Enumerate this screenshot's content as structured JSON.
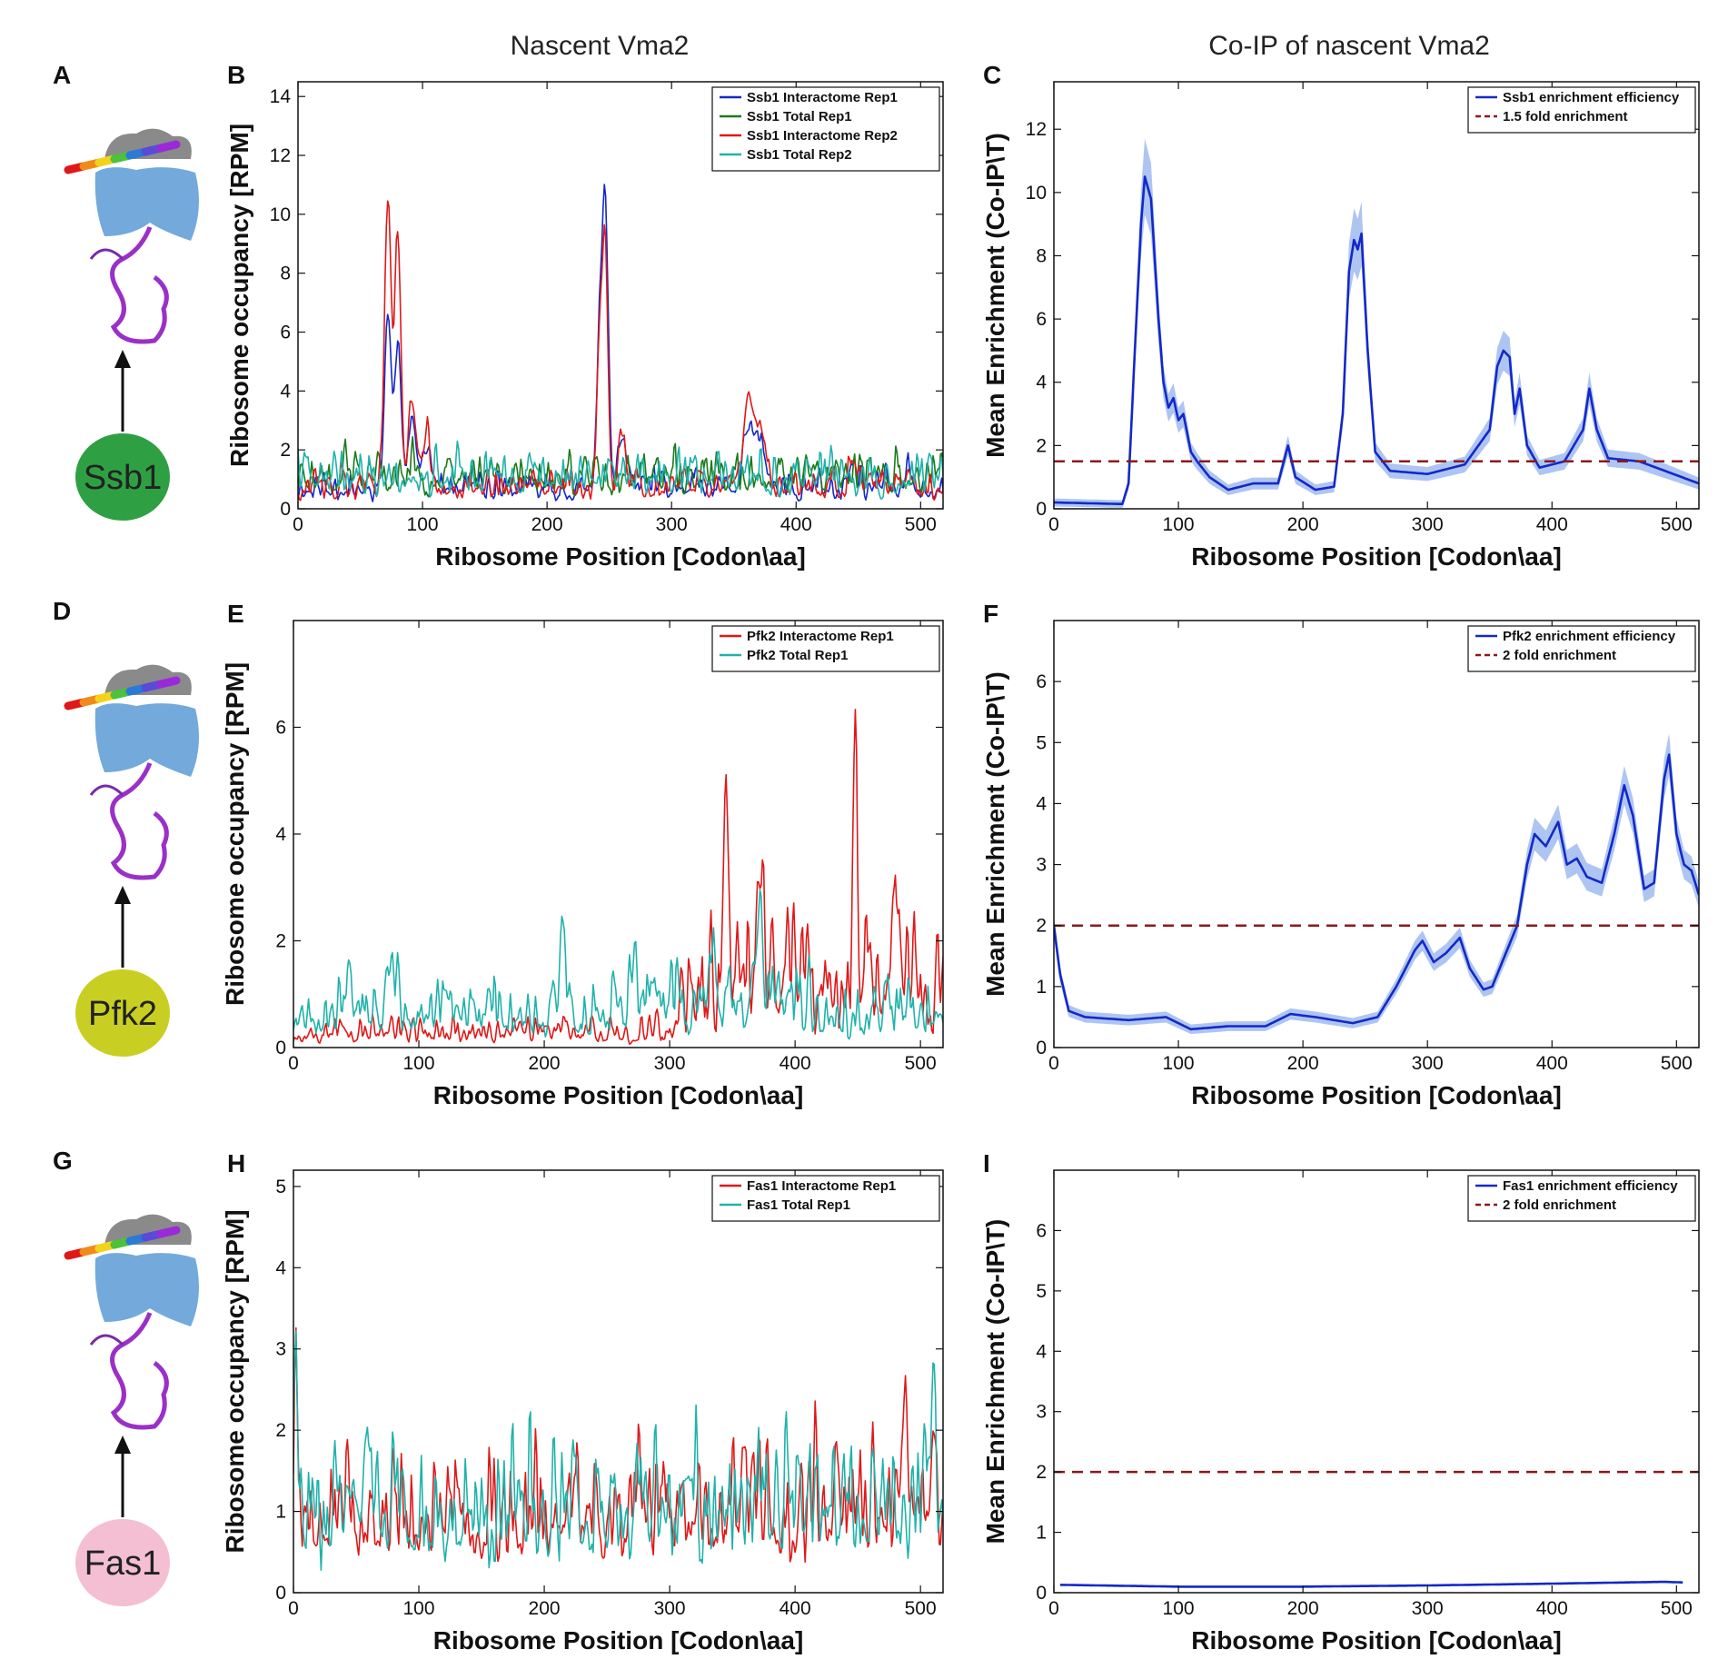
{
  "column_titles": [
    "Nascent Vma2",
    "Co-IP of nascent Vma2"
  ],
  "rows": [
    {
      "letter": "A",
      "protein": "Ssb1",
      "color": "#2ea043"
    },
    {
      "letter": "D",
      "protein": "Pfk2",
      "color": "#c8cf22"
    },
    {
      "letter": "G",
      "protein": "Fas1",
      "color": "#f4bfd2"
    }
  ],
  "colors": {
    "blue": "#1428c8",
    "green": "#1a7a1a",
    "red": "#e01818",
    "teal": "#20b2aa",
    "band": "#9ab6ee",
    "threshold": "#8b1a1a"
  },
  "chart_data": [
    {
      "panel": "B",
      "type": "line",
      "xlabel": "Ribosome Position [Codon\\aa]",
      "ylabel": "Ribosome occupancy [RPM]",
      "xlim": [
        0,
        518
      ],
      "ylim": [
        0,
        14.5
      ],
      "xticks": [
        0,
        100,
        200,
        300,
        400,
        500
      ],
      "yticks": [
        0,
        2,
        4,
        6,
        8,
        10,
        12,
        14
      ],
      "series": [
        {
          "name": "Ssb1 Interactome Rep1",
          "color": "blue",
          "baseline": 0.5,
          "noise": 0.6,
          "seed": 11,
          "peaks": [
            [
              72,
              6.2,
              2.5
            ],
            [
              80,
              5.0,
              2.5
            ],
            [
              92,
              2.8,
              3
            ],
            [
              103,
              1.5,
              3
            ],
            [
              243,
              6.0,
              2.5
            ],
            [
              247,
              9.0,
              2
            ],
            [
              260,
              1.8,
              3
            ],
            [
              362,
              2.2,
              4
            ],
            [
              372,
              1.6,
              4
            ],
            [
              445,
              0.9,
              3
            ],
            [
              490,
              0.7,
              3
            ]
          ]
        },
        {
          "name": "Ssb1 Total Rep1",
          "color": "green",
          "baseline": 0.8,
          "noise": 0.9,
          "seed": 23,
          "peaks": []
        },
        {
          "name": "Ssb1 Interactome Rep2",
          "color": "red",
          "baseline": 0.5,
          "noise": 0.6,
          "seed": 37,
          "peaks": [
            [
              72,
              10.2,
              2.5
            ],
            [
              80,
              8.8,
              2.5
            ],
            [
              92,
              3.2,
              3
            ],
            [
              103,
              1.8,
              3
            ],
            [
              243,
              5.4,
              2.5
            ],
            [
              247,
              7.4,
              2
            ],
            [
              260,
              2.2,
              3
            ],
            [
              362,
              3.4,
              4
            ],
            [
              372,
              2.0,
              4
            ],
            [
              445,
              1.0,
              3
            ],
            [
              490,
              0.8,
              3
            ]
          ]
        },
        {
          "name": "Ssb1 Total Rep2",
          "color": "teal",
          "baseline": 0.8,
          "noise": 0.9,
          "seed": 41,
          "peaks": []
        }
      ],
      "legend": "top-right"
    },
    {
      "panel": "C",
      "type": "line",
      "xlabel": "Ribosome Position [Codon\\aa]",
      "ylabel": "Mean Enrichment (Co-IP\\T)",
      "xlim": [
        0,
        518
      ],
      "ylim": [
        0,
        13.5
      ],
      "xticks": [
        0,
        100,
        200,
        300,
        400,
        500
      ],
      "yticks": [
        0,
        2,
        4,
        6,
        8,
        10,
        12
      ],
      "series": [
        {
          "name": "Ssb1 enrichment efficiency",
          "color": "blue",
          "points": [
            [
              0,
              0.2
            ],
            [
              55,
              0.15
            ],
            [
              60,
              0.8
            ],
            [
              65,
              5
            ],
            [
              70,
              9
            ],
            [
              73,
              10.5
            ],
            [
              78,
              9.8
            ],
            [
              84,
              6
            ],
            [
              88,
              4
            ],
            [
              92,
              3.2
            ],
            [
              96,
              3.5
            ],
            [
              100,
              2.8
            ],
            [
              104,
              3.0
            ],
            [
              110,
              1.8
            ],
            [
              115,
              1.5
            ],
            [
              125,
              1.0
            ],
            [
              140,
              0.6
            ],
            [
              160,
              0.8
            ],
            [
              180,
              0.8
            ],
            [
              188,
              2.0
            ],
            [
              194,
              1.0
            ],
            [
              210,
              0.6
            ],
            [
              225,
              0.7
            ],
            [
              232,
              3
            ],
            [
              237,
              7.5
            ],
            [
              241,
              8.5
            ],
            [
              244,
              8.2
            ],
            [
              247,
              8.7
            ],
            [
              252,
              5
            ],
            [
              258,
              1.8
            ],
            [
              270,
              1.2
            ],
            [
              300,
              1.1
            ],
            [
              330,
              1.4
            ],
            [
              350,
              2.5
            ],
            [
              356,
              4.5
            ],
            [
              361,
              5.0
            ],
            [
              366,
              4.8
            ],
            [
              370,
              3.0
            ],
            [
              374,
              3.8
            ],
            [
              380,
              2.0
            ],
            [
              390,
              1.3
            ],
            [
              410,
              1.5
            ],
            [
              425,
              2.5
            ],
            [
              430,
              3.8
            ],
            [
              436,
              2.5
            ],
            [
              445,
              1.6
            ],
            [
              470,
              1.5
            ],
            [
              518,
              0.8
            ]
          ],
          "band": 0.35
        }
      ],
      "threshold": {
        "name": "1.5 fold enrichment",
        "value": 1.5,
        "color": "threshold"
      },
      "legend": "top-right"
    },
    {
      "panel": "E",
      "type": "line",
      "xlabel": "Ribosome Position [Codon\\aa]",
      "ylabel": "Ribosome occupancy [RPM]",
      "xlim": [
        0,
        518
      ],
      "ylim": [
        0,
        8
      ],
      "xticks": [
        0,
        100,
        200,
        300,
        400,
        500
      ],
      "yticks": [
        0,
        2,
        4,
        6
      ],
      "series": [
        {
          "name": "Pfk2 Interactome Rep1",
          "color": "red",
          "baseline": 0.15,
          "noise": 0.35,
          "seed": 53,
          "highFrom": 305,
          "highLevel": 1.8,
          "peaks": [
            [
              345,
              5.0,
              1.5
            ],
            [
              372,
              2.5,
              2
            ],
            [
              448,
              5.5,
              1.5
            ],
            [
              480,
              1.5,
              2
            ]
          ]
        },
        {
          "name": "Pfk2 Total Rep1",
          "color": "teal",
          "baseline": 0.4,
          "noise": 0.8,
          "seed": 67,
          "peaks": [
            [
              215,
              1.8,
              1.5
            ],
            [
              272,
              1.0,
              1.5
            ],
            [
              372,
              2.5,
              2
            ],
            [
              335,
              1.2,
              2
            ]
          ]
        }
      ],
      "legend": "top-right"
    },
    {
      "panel": "F",
      "type": "line",
      "xlabel": "Ribosome Position [Codon\\aa]",
      "ylabel": "Mean Enrichment (Co-IP\\T)",
      "xlim": [
        0,
        518
      ],
      "ylim": [
        0,
        7
      ],
      "xticks": [
        0,
        100,
        200,
        300,
        400,
        500
      ],
      "yticks": [
        0,
        1,
        2,
        3,
        4,
        5,
        6
      ],
      "series": [
        {
          "name": "Pfk2 enrichment efficiency",
          "color": "blue",
          "points": [
            [
              0,
              2.0
            ],
            [
              5,
              1.2
            ],
            [
              12,
              0.6
            ],
            [
              25,
              0.5
            ],
            [
              60,
              0.45
            ],
            [
              90,
              0.5
            ],
            [
              110,
              0.3
            ],
            [
              140,
              0.35
            ],
            [
              170,
              0.35
            ],
            [
              190,
              0.55
            ],
            [
              210,
              0.5
            ],
            [
              240,
              0.4
            ],
            [
              260,
              0.5
            ],
            [
              275,
              1.0
            ],
            [
              290,
              1.6
            ],
            [
              296,
              1.75
            ],
            [
              305,
              1.4
            ],
            [
              315,
              1.55
            ],
            [
              326,
              1.8
            ],
            [
              334,
              1.3
            ],
            [
              345,
              0.95
            ],
            [
              352,
              1.0
            ],
            [
              360,
              1.4
            ],
            [
              372,
              2.0
            ],
            [
              380,
              3.0
            ],
            [
              386,
              3.5
            ],
            [
              395,
              3.3
            ],
            [
              405,
              3.7
            ],
            [
              412,
              3.0
            ],
            [
              420,
              3.1
            ],
            [
              428,
              2.8
            ],
            [
              440,
              2.7
            ],
            [
              450,
              3.5
            ],
            [
              458,
              4.3
            ],
            [
              465,
              3.8
            ],
            [
              474,
              2.6
            ],
            [
              482,
              2.7
            ],
            [
              490,
              4.4
            ],
            [
              494,
              4.8
            ],
            [
              500,
              3.5
            ],
            [
              506,
              3.0
            ],
            [
              512,
              2.9
            ],
            [
              518,
              2.5
            ]
          ],
          "band": 0.2
        }
      ],
      "threshold": {
        "name": "2 fold enrichment",
        "value": 2,
        "color": "threshold"
      },
      "legend": "top-right"
    },
    {
      "panel": "H",
      "type": "line",
      "xlabel": "Ribosome Position [Codon\\aa]",
      "ylabel": "Ribosome occupancy [RPM]",
      "xlim": [
        0,
        518
      ],
      "ylim": [
        0,
        5.2
      ],
      "xticks": [
        0,
        100,
        200,
        300,
        400,
        500
      ],
      "yticks": [
        0,
        1,
        2,
        3,
        4,
        5
      ],
      "series": [
        {
          "name": "Fas1 Interactome Rep1",
          "color": "red",
          "baseline": 0.65,
          "noise": 0.9,
          "seed": 79,
          "peaks": [
            [
              2,
              3.0,
              1
            ],
            [
              488,
              1.9,
              2
            ],
            [
              510,
              0.8,
              2
            ]
          ]
        },
        {
          "name": "Fas1 Total Rep1",
          "color": "teal",
          "baseline": 0.65,
          "noise": 1.0,
          "seed": 83,
          "peaks": [
            [
              2,
              2.4,
              1
            ],
            [
              58,
              1.4,
              2
            ],
            [
              510,
              2.2,
              1.5
            ]
          ]
        }
      ],
      "legend": "top-right"
    },
    {
      "panel": "I",
      "type": "line",
      "xlabel": "Ribosome Position [Codon\\aa]",
      "ylabel": "Mean Enrichment (Co-IP\\T)",
      "xlim": [
        0,
        518
      ],
      "ylim": [
        0,
        7
      ],
      "xticks": [
        0,
        100,
        200,
        300,
        400,
        500
      ],
      "yticks": [
        0,
        1,
        2,
        3,
        4,
        5,
        6
      ],
      "series": [
        {
          "name": "Fas1 enrichment efficiency",
          "color": "blue",
          "points": [
            [
              5,
              0.13
            ],
            [
              100,
              0.1
            ],
            [
              200,
              0.1
            ],
            [
              300,
              0.12
            ],
            [
              400,
              0.15
            ],
            [
              490,
              0.18
            ],
            [
              505,
              0.17
            ]
          ],
          "band": 0.01
        }
      ],
      "threshold": {
        "name": "2 fold enrichment",
        "value": 2,
        "color": "threshold"
      },
      "legend": "top-right"
    }
  ]
}
